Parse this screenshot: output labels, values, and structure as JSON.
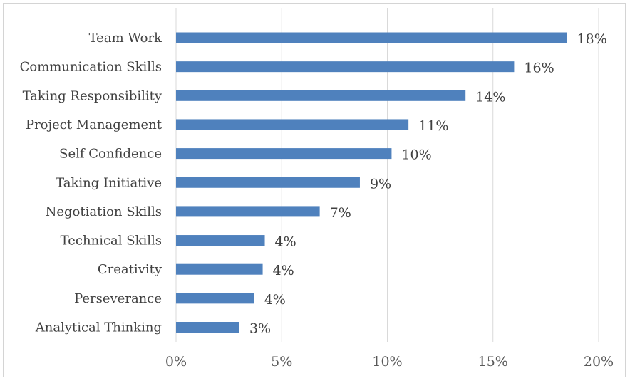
{
  "chart_data": {
    "type": "bar",
    "orientation": "horizontal",
    "categories": [
      "Team Work",
      "Communication Skills",
      "Taking Responsibility",
      "Project Management",
      "Self Confidence",
      "Taking Initiative",
      "Negotiation Skills",
      "Technical Skills",
      "Creativity",
      "Perseverance",
      "Analytical Thinking"
    ],
    "values": [
      18.5,
      16.0,
      13.7,
      11.0,
      10.2,
      8.7,
      6.8,
      4.2,
      4.1,
      3.7,
      3.0
    ],
    "data_labels": [
      "18%",
      "16%",
      "14%",
      "11%",
      "10%",
      "9%",
      "7%",
      "4%",
      "4%",
      "4%",
      "3%"
    ],
    "title": "",
    "xlabel": "",
    "ylabel": "",
    "xlim": [
      0,
      20
    ],
    "x_ticks": [
      0,
      5,
      10,
      15,
      20
    ],
    "x_tick_labels": [
      "0%",
      "5%",
      "10%",
      "15%",
      "20%"
    ],
    "grid": "vertical",
    "legend": "none",
    "bar_color": "#4f81bd",
    "grid_color": "#d9d9d9"
  }
}
